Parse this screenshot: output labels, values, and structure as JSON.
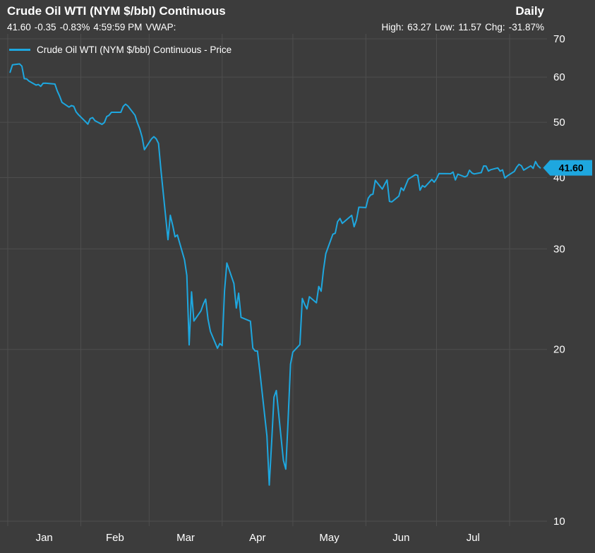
{
  "header": {
    "title": "Crude Oil WTI (NYM $/bbl) Continuous",
    "frequency": "Daily",
    "quote": {
      "last": "41.60",
      "change": "-0.35",
      "change_pct": "-0.83%",
      "time": "4:59:59 PM",
      "vwap_label": "VWAP:"
    },
    "stats": {
      "high_label": "High:",
      "high": "63.27",
      "low_label": "Low:",
      "low": "11.57",
      "chg_label": "Chg:",
      "chg": "-31.87%"
    }
  },
  "legend": {
    "label": "Crude Oil WTI (NYM $/bbl) Continuous - Price"
  },
  "price_tag": {
    "value": "41.60"
  },
  "colors": {
    "background": "#3c3c3c",
    "gridline": "#4e4e4e",
    "text": "#ffffff",
    "accent": "#1ea7df",
    "tag_text": "#000000"
  },
  "chart_data": {
    "type": "line",
    "title": "Crude Oil WTI (NYM $/bbl) Continuous",
    "subtitle": "Daily",
    "grid": true,
    "legend_position": "top-left",
    "y_scale": "log",
    "ylim": [
      9.8,
      71.5
    ],
    "y_ticks": [
      10,
      20,
      30,
      40,
      50,
      60,
      70
    ],
    "x_tick_labels": [
      "Jan",
      "Feb",
      "Mar",
      "Apr",
      "May",
      "Jun",
      "Jul"
    ],
    "x_gridlines": [
      "2020-01-01",
      "2020-02-01",
      "2020-03-01",
      "2020-04-01",
      "2020-05-01",
      "2020-06-01",
      "2020-07-01",
      "2020-08-01"
    ],
    "x_range": [
      "2020-01-01",
      "2020-08-14"
    ],
    "last_price": 41.6,
    "stats": {
      "high": 63.27,
      "low": 11.57,
      "change_pct": -31.87
    },
    "series": [
      {
        "name": "Crude Oil WTI (NYM $/bbl) Continuous - Price",
        "color": "#1ea7df",
        "points": [
          [
            "2020-01-02",
            61.18
          ],
          [
            "2020-01-03",
            63.05
          ],
          [
            "2020-01-06",
            63.27
          ],
          [
            "2020-01-07",
            62.7
          ],
          [
            "2020-01-08",
            59.61
          ],
          [
            "2020-01-09",
            59.56
          ],
          [
            "2020-01-10",
            59.04
          ],
          [
            "2020-01-13",
            58.08
          ],
          [
            "2020-01-14",
            58.23
          ],
          [
            "2020-01-15",
            57.81
          ],
          [
            "2020-01-16",
            58.52
          ],
          [
            "2020-01-17",
            58.54
          ],
          [
            "2020-01-21",
            58.34
          ],
          [
            "2020-01-22",
            56.74
          ],
          [
            "2020-01-23",
            55.59
          ],
          [
            "2020-01-24",
            54.19
          ],
          [
            "2020-01-27",
            53.14
          ],
          [
            "2020-01-28",
            53.48
          ],
          [
            "2020-01-29",
            53.33
          ],
          [
            "2020-01-30",
            52.14
          ],
          [
            "2020-01-31",
            51.56
          ],
          [
            "2020-02-03",
            50.11
          ],
          [
            "2020-02-04",
            49.61
          ],
          [
            "2020-02-05",
            50.75
          ],
          [
            "2020-02-06",
            50.95
          ],
          [
            "2020-02-07",
            50.32
          ],
          [
            "2020-02-10",
            49.57
          ],
          [
            "2020-02-11",
            49.94
          ],
          [
            "2020-02-12",
            51.17
          ],
          [
            "2020-02-13",
            51.42
          ],
          [
            "2020-02-14",
            52.05
          ],
          [
            "2020-02-18",
            52.05
          ],
          [
            "2020-02-19",
            53.29
          ],
          [
            "2020-02-20",
            53.78
          ],
          [
            "2020-02-21",
            53.38
          ],
          [
            "2020-02-24",
            51.43
          ],
          [
            "2020-02-25",
            49.9
          ],
          [
            "2020-02-26",
            48.73
          ],
          [
            "2020-02-27",
            47.09
          ],
          [
            "2020-02-28",
            44.76
          ],
          [
            "2020-03-02",
            46.75
          ],
          [
            "2020-03-03",
            47.18
          ],
          [
            "2020-03-04",
            46.78
          ],
          [
            "2020-03-05",
            45.9
          ],
          [
            "2020-03-06",
            41.28
          ],
          [
            "2020-03-09",
            31.13
          ],
          [
            "2020-03-10",
            34.36
          ],
          [
            "2020-03-11",
            32.98
          ],
          [
            "2020-03-12",
            31.5
          ],
          [
            "2020-03-13",
            31.73
          ],
          [
            "2020-03-16",
            28.7
          ],
          [
            "2020-03-17",
            26.95
          ],
          [
            "2020-03-18",
            20.37
          ],
          [
            "2020-03-19",
            25.22
          ],
          [
            "2020-03-20",
            22.43
          ],
          [
            "2020-03-23",
            23.36
          ],
          [
            "2020-03-24",
            24.01
          ],
          [
            "2020-03-25",
            24.49
          ],
          [
            "2020-03-26",
            22.6
          ],
          [
            "2020-03-27",
            21.51
          ],
          [
            "2020-03-30",
            20.09
          ],
          [
            "2020-03-31",
            20.48
          ],
          [
            "2020-04-01",
            20.31
          ],
          [
            "2020-04-02",
            25.32
          ],
          [
            "2020-04-03",
            28.34
          ],
          [
            "2020-04-06",
            26.08
          ],
          [
            "2020-04-07",
            23.63
          ],
          [
            "2020-04-08",
            25.09
          ],
          [
            "2020-04-09",
            22.76
          ],
          [
            "2020-04-13",
            22.41
          ],
          [
            "2020-04-14",
            20.11
          ],
          [
            "2020-04-15",
            19.87
          ],
          [
            "2020-04-16",
            19.87
          ],
          [
            "2020-04-17",
            18.27
          ],
          [
            "2020-04-20",
            14.1
          ],
          [
            "2020-04-21",
            11.57
          ],
          [
            "2020-04-22",
            13.78
          ],
          [
            "2020-04-23",
            16.5
          ],
          [
            "2020-04-24",
            16.94
          ],
          [
            "2020-04-27",
            12.78
          ],
          [
            "2020-04-28",
            12.34
          ],
          [
            "2020-04-29",
            15.06
          ],
          [
            "2020-04-30",
            18.84
          ],
          [
            "2020-05-01",
            19.78
          ],
          [
            "2020-05-04",
            20.39
          ],
          [
            "2020-05-05",
            24.56
          ],
          [
            "2020-05-06",
            23.99
          ],
          [
            "2020-05-07",
            23.55
          ],
          [
            "2020-05-08",
            24.74
          ],
          [
            "2020-05-11",
            24.14
          ],
          [
            "2020-05-12",
            25.78
          ],
          [
            "2020-05-13",
            25.29
          ],
          [
            "2020-05-14",
            27.56
          ],
          [
            "2020-05-15",
            29.43
          ],
          [
            "2020-05-18",
            31.82
          ],
          [
            "2020-05-19",
            31.96
          ],
          [
            "2020-05-20",
            33.49
          ],
          [
            "2020-05-21",
            33.92
          ],
          [
            "2020-05-22",
            33.25
          ],
          [
            "2020-05-26",
            34.35
          ],
          [
            "2020-05-27",
            32.81
          ],
          [
            "2020-05-28",
            33.71
          ],
          [
            "2020-05-29",
            35.49
          ],
          [
            "2020-06-01",
            35.44
          ],
          [
            "2020-06-02",
            36.81
          ],
          [
            "2020-06-03",
            37.29
          ],
          [
            "2020-06-04",
            37.41
          ],
          [
            "2020-06-05",
            39.55
          ],
          [
            "2020-06-08",
            38.19
          ],
          [
            "2020-06-09",
            38.94
          ],
          [
            "2020-06-10",
            39.6
          ],
          [
            "2020-06-11",
            36.34
          ],
          [
            "2020-06-12",
            36.26
          ],
          [
            "2020-06-15",
            37.12
          ],
          [
            "2020-06-16",
            38.38
          ],
          [
            "2020-06-17",
            37.96
          ],
          [
            "2020-06-18",
            38.84
          ],
          [
            "2020-06-19",
            39.75
          ],
          [
            "2020-06-22",
            40.46
          ],
          [
            "2020-06-23",
            40.37
          ],
          [
            "2020-06-24",
            38.01
          ],
          [
            "2020-06-25",
            38.72
          ],
          [
            "2020-06-26",
            38.49
          ],
          [
            "2020-06-29",
            39.7
          ],
          [
            "2020-06-30",
            39.27
          ],
          [
            "2020-07-01",
            39.82
          ],
          [
            "2020-07-02",
            40.65
          ],
          [
            "2020-07-06",
            40.63
          ],
          [
            "2020-07-07",
            40.62
          ],
          [
            "2020-07-08",
            40.9
          ],
          [
            "2020-07-09",
            39.62
          ],
          [
            "2020-07-10",
            40.55
          ],
          [
            "2020-07-13",
            40.1
          ],
          [
            "2020-07-14",
            40.29
          ],
          [
            "2020-07-15",
            41.2
          ],
          [
            "2020-07-16",
            40.75
          ],
          [
            "2020-07-17",
            40.59
          ],
          [
            "2020-07-20",
            40.81
          ],
          [
            "2020-07-21",
            41.92
          ],
          [
            "2020-07-22",
            41.9
          ],
          [
            "2020-07-23",
            41.07
          ],
          [
            "2020-07-24",
            41.29
          ],
          [
            "2020-07-27",
            41.6
          ],
          [
            "2020-07-28",
            41.04
          ],
          [
            "2020-07-29",
            41.27
          ],
          [
            "2020-07-30",
            39.92
          ],
          [
            "2020-07-31",
            40.27
          ],
          [
            "2020-08-03",
            41.01
          ],
          [
            "2020-08-04",
            41.7
          ],
          [
            "2020-08-05",
            42.19
          ],
          [
            "2020-08-06",
            41.95
          ],
          [
            "2020-08-07",
            41.22
          ],
          [
            "2020-08-10",
            41.94
          ],
          [
            "2020-08-11",
            41.51
          ],
          [
            "2020-08-12",
            42.67
          ],
          [
            "2020-08-13",
            41.95
          ],
          [
            "2020-08-14",
            41.6
          ]
        ]
      }
    ]
  }
}
